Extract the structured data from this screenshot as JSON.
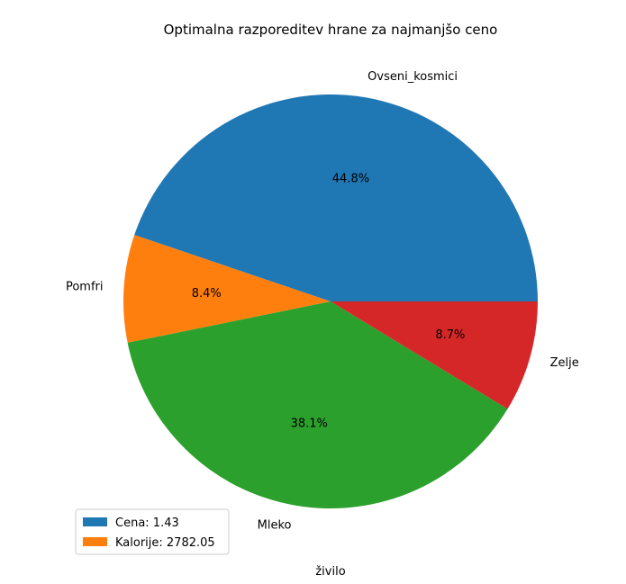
{
  "chart_data": {
    "type": "pie",
    "title": "Optimalna razporeditev hrane za najmanjšo ceno",
    "xlabel": "živilo",
    "slices": [
      {
        "label": "Ovseni_kosmici",
        "value": 44.8,
        "pct_label": "44.8%",
        "color": "#1f77b4"
      },
      {
        "label": "Pomfri",
        "value": 8.4,
        "pct_label": "8.4%",
        "color": "#ff7f0e"
      },
      {
        "label": "Mleko",
        "value": 38.1,
        "pct_label": "38.1%",
        "color": "#2ca02c"
      },
      {
        "label": "Zelje",
        "value": 8.7,
        "pct_label": "8.7%",
        "color": "#d62728"
      }
    ],
    "legend": {
      "placement": "lower-left",
      "entries": [
        {
          "label": "Cena: 1.43",
          "color": "#1f77b4"
        },
        {
          "label": "Kalorije: 2782.05",
          "color": "#ff7f0e"
        }
      ]
    }
  }
}
